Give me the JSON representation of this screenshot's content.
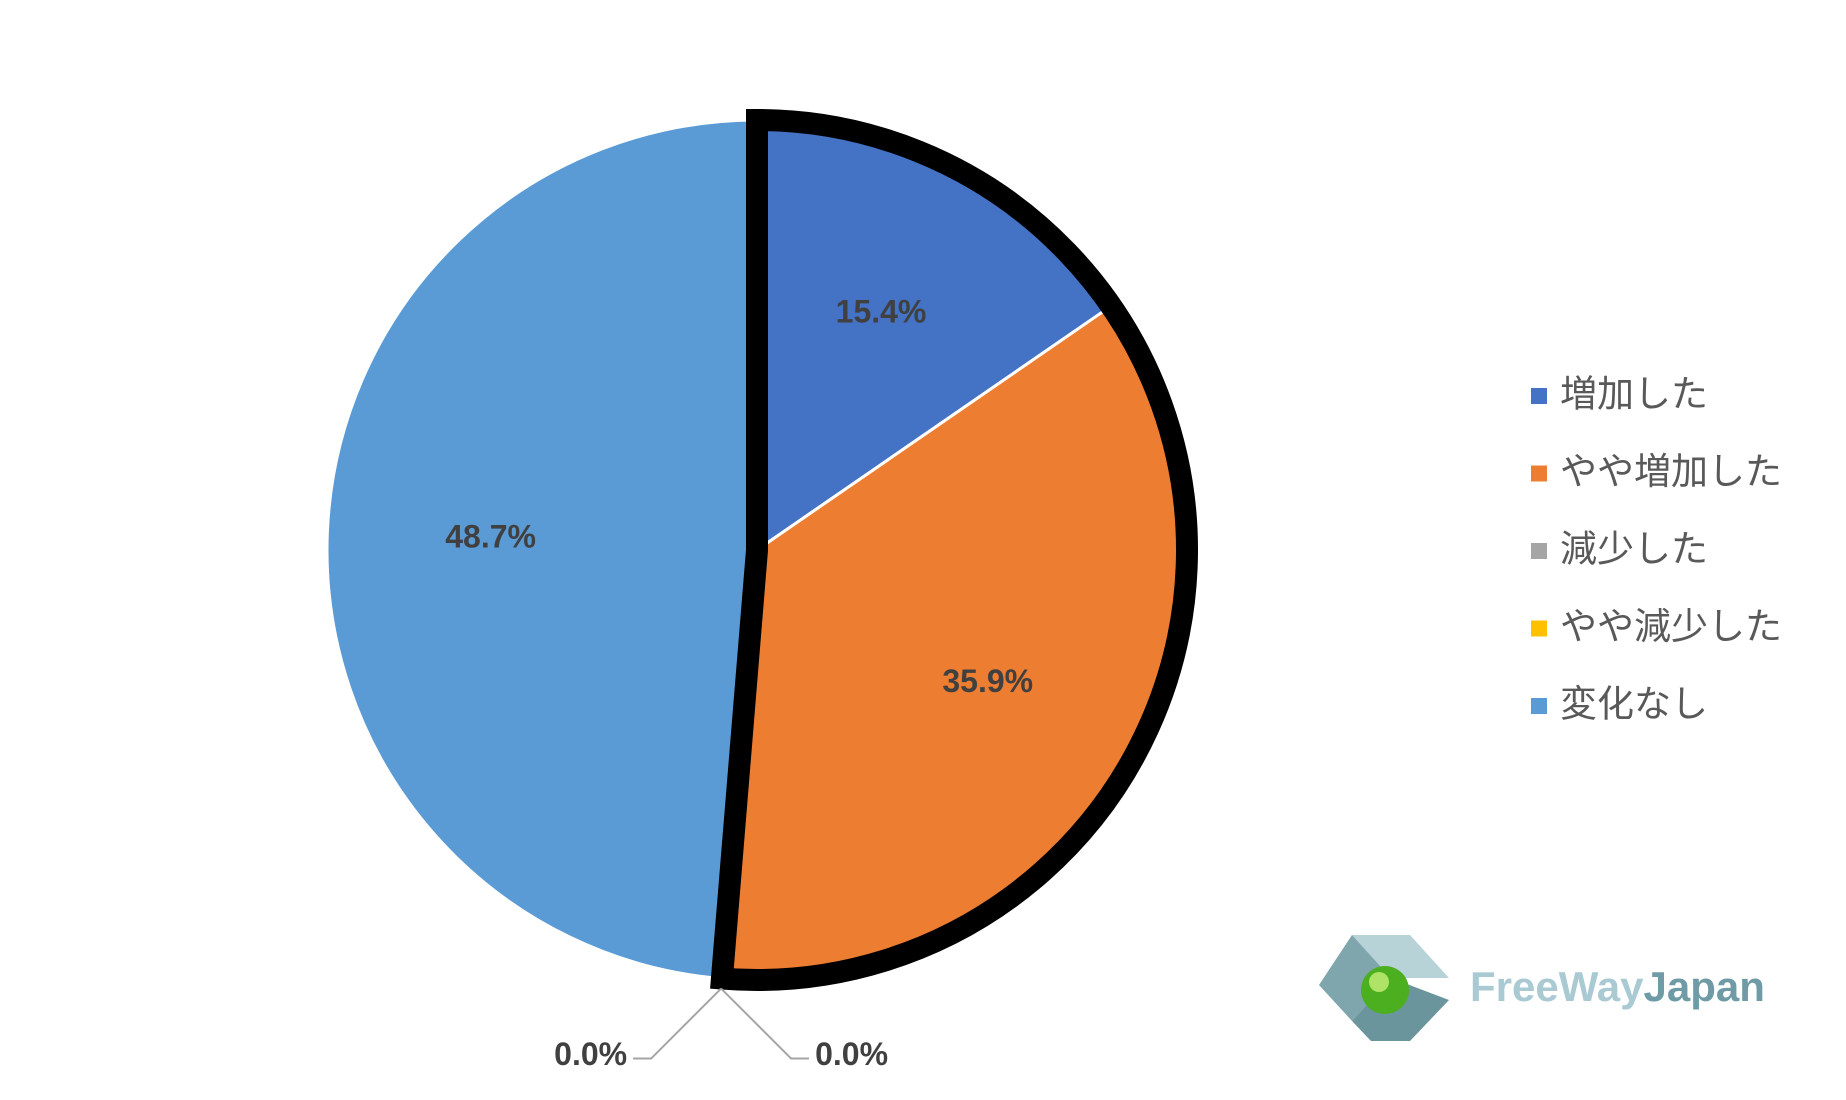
{
  "chart_data": {
    "type": "pie",
    "categories": [
      "増加した",
      "やや増加した",
      "減少した",
      "やや減少した",
      "変化なし"
    ],
    "values": [
      15.4,
      35.9,
      0.0,
      0.0,
      48.7
    ],
    "value_labels": [
      "15.4%",
      "35.9%",
      "0.0%",
      "0.0%",
      "48.7%"
    ],
    "colors": [
      "#4472c4",
      "#ed7d31",
      "#a5a5a5",
      "#ffc000",
      "#5b9bd5"
    ],
    "legend": "right",
    "logo": [
      "FreeWay",
      "Japan"
    ]
  }
}
